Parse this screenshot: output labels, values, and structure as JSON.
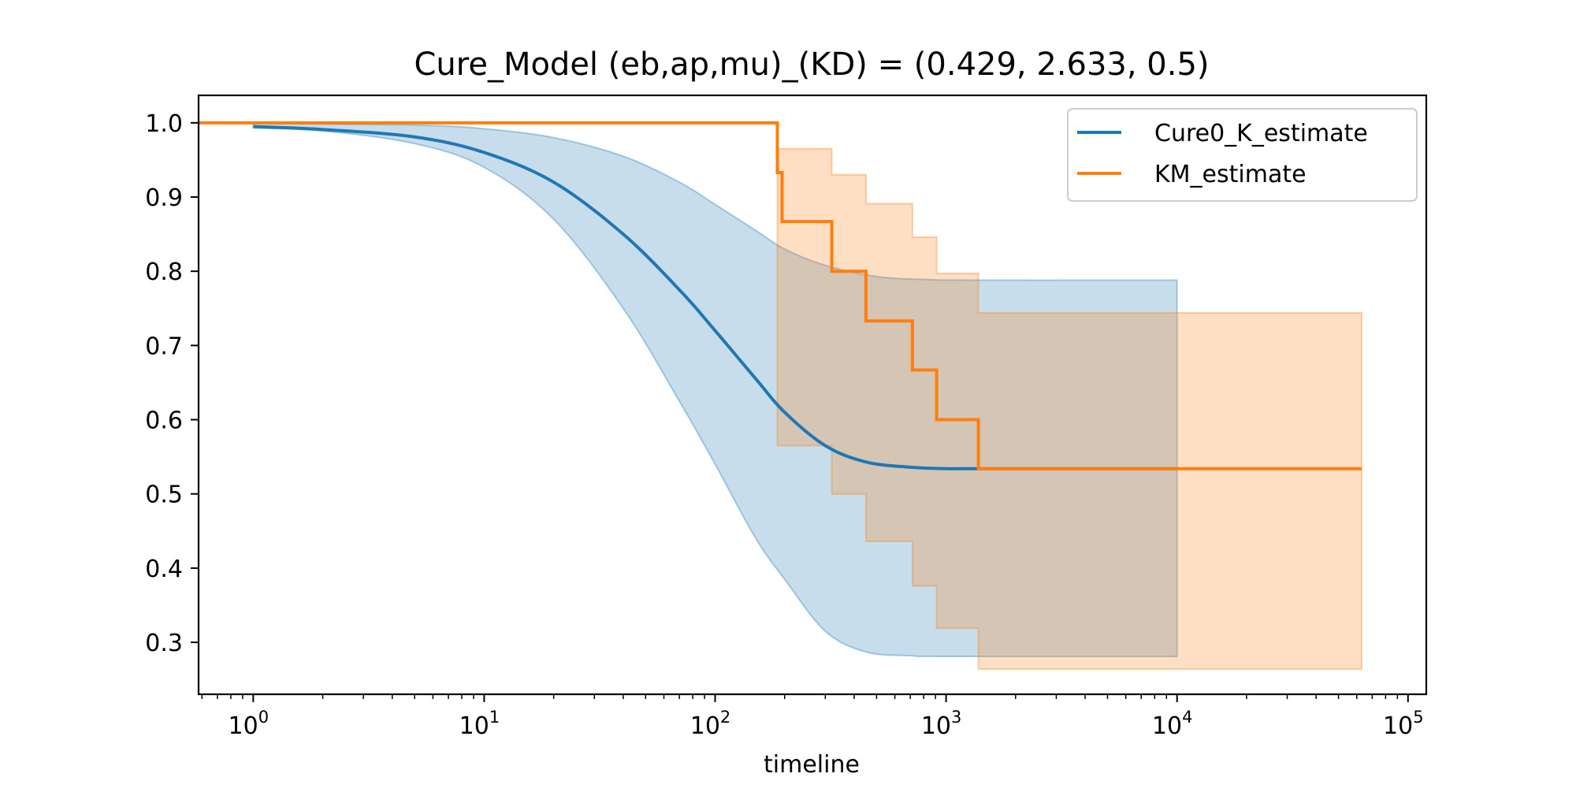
{
  "chart_data": {
    "type": "line",
    "title": "Cure_Model (eb,ap,mu)_(KD) = (0.429, 2.633, 0.5)",
    "xlabel": "timeline",
    "ylabel": "",
    "xscale": "log",
    "xlim": [
      0.58,
      120000
    ],
    "ylim": [
      0.23,
      1.037
    ],
    "grid": false,
    "legend_position": "top-right",
    "x_ticks": [
      {
        "base": "10",
        "exp": "0",
        "value": 1
      },
      {
        "base": "10",
        "exp": "1",
        "value": 10
      },
      {
        "base": "10",
        "exp": "2",
        "value": 100
      },
      {
        "base": "10",
        "exp": "3",
        "value": 1000
      },
      {
        "base": "10",
        "exp": "4",
        "value": 10000
      },
      {
        "base": "10",
        "exp": "5",
        "value": 100000
      }
    ],
    "y_ticks": [
      "0.3",
      "0.4",
      "0.5",
      "0.6",
      "0.7",
      "0.8",
      "0.9",
      "1.0"
    ],
    "series": [
      {
        "name": "Cure0_K_estimate",
        "color": "#1f77b4",
        "kind": "smooth",
        "points": [
          [
            1,
            0.995
          ],
          [
            2,
            0.991
          ],
          [
            5,
            0.981
          ],
          [
            10,
            0.96
          ],
          [
            20,
            0.92
          ],
          [
            40,
            0.85
          ],
          [
            70,
            0.775
          ],
          [
            100,
            0.72
          ],
          [
            150,
            0.655
          ],
          [
            200,
            0.61
          ],
          [
            300,
            0.565
          ],
          [
            450,
            0.543
          ],
          [
            700,
            0.536
          ],
          [
            1000,
            0.534
          ],
          [
            1400,
            0.534
          ],
          [
            10000,
            0.534
          ]
        ],
        "ci_upper": [
          [
            1,
            0.999
          ],
          [
            5,
            0.997
          ],
          [
            10,
            0.992
          ],
          [
            20,
            0.98
          ],
          [
            40,
            0.955
          ],
          [
            70,
            0.92
          ],
          [
            100,
            0.89
          ],
          [
            150,
            0.855
          ],
          [
            200,
            0.83
          ],
          [
            300,
            0.808
          ],
          [
            500,
            0.793
          ],
          [
            800,
            0.789
          ],
          [
            1400,
            0.788
          ],
          [
            10000,
            0.788
          ]
        ],
        "ci_lower": [
          [
            1,
            0.993
          ],
          [
            2,
            0.989
          ],
          [
            5,
            0.972
          ],
          [
            10,
            0.94
          ],
          [
            20,
            0.87
          ],
          [
            40,
            0.75
          ],
          [
            70,
            0.625
          ],
          [
            100,
            0.54
          ],
          [
            150,
            0.44
          ],
          [
            200,
            0.385
          ],
          [
            300,
            0.315
          ],
          [
            450,
            0.287
          ],
          [
            700,
            0.282
          ],
          [
            1000,
            0.281
          ],
          [
            10000,
            0.281
          ]
        ]
      },
      {
        "name": "KM_estimate",
        "color": "#ff7f0e",
        "kind": "step",
        "points": [
          [
            0.58,
            1.0
          ],
          [
            186,
            1.0
          ],
          [
            186,
            0.933
          ],
          [
            195,
            0.933
          ],
          [
            195,
            0.867
          ],
          [
            320,
            0.867
          ],
          [
            320,
            0.8
          ],
          [
            450,
            0.8
          ],
          [
            450,
            0.733
          ],
          [
            715,
            0.733
          ],
          [
            715,
            0.667
          ],
          [
            910,
            0.667
          ],
          [
            910,
            0.6
          ],
          [
            1380,
            0.6
          ],
          [
            1380,
            0.534
          ],
          [
            63000,
            0.534
          ]
        ],
        "ci_upper": [
          [
            186,
            0.965
          ],
          [
            320,
            0.965
          ],
          [
            320,
            0.93
          ],
          [
            450,
            0.93
          ],
          [
            450,
            0.891
          ],
          [
            715,
            0.891
          ],
          [
            715,
            0.846
          ],
          [
            910,
            0.846
          ],
          [
            910,
            0.797
          ],
          [
            1380,
            0.797
          ],
          [
            1380,
            0.744
          ],
          [
            63000,
            0.744
          ]
        ],
        "ci_lower": [
          [
            186,
            0.565
          ],
          [
            320,
            0.565
          ],
          [
            320,
            0.5
          ],
          [
            450,
            0.5
          ],
          [
            450,
            0.436
          ],
          [
            715,
            0.436
          ],
          [
            715,
            0.376
          ],
          [
            910,
            0.376
          ],
          [
            910,
            0.319
          ],
          [
            1380,
            0.319
          ],
          [
            1380,
            0.264
          ],
          [
            63000,
            0.264
          ]
        ]
      }
    ]
  }
}
